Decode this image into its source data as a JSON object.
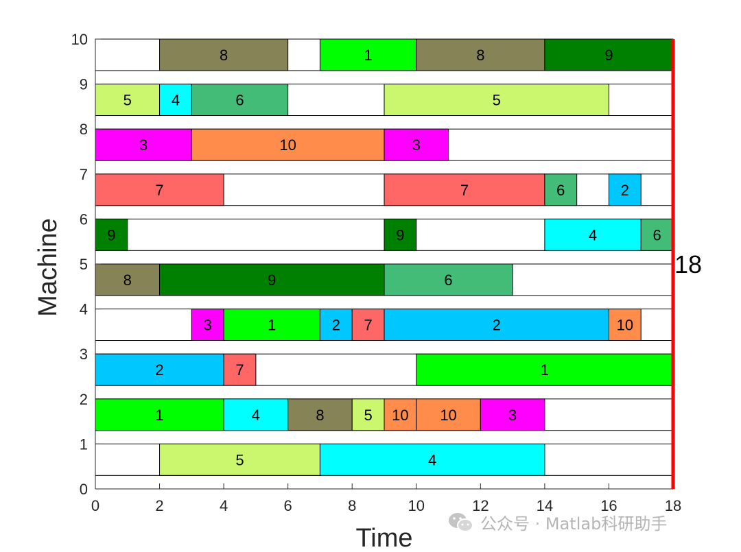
{
  "chart_data": {
    "type": "gantt",
    "xlabel": "Time",
    "ylabel": "Machine",
    "xlim": [
      0,
      18
    ],
    "ylim": [
      0,
      10
    ],
    "x_ticks": [
      "0",
      "2",
      "4",
      "6",
      "8",
      "10",
      "12",
      "14",
      "16",
      "18"
    ],
    "y_ticks": [
      "0",
      "1",
      "2",
      "3",
      "4",
      "5",
      "6",
      "7",
      "8",
      "9",
      "10"
    ],
    "makespan": 18,
    "makespan_label": "18",
    "makespan_color": "#ff0000",
    "job_colors": {
      "1": "#00ff00",
      "2": "#00c8ff",
      "3": "#ff00ff",
      "4": "#00ffff",
      "5": "#cbf76f",
      "6": "#43bc78",
      "7": "#ff6666",
      "8": "#868456",
      "9": "#008000",
      "10": "#ff8c4a"
    },
    "machines": [
      {
        "machine": 1,
        "ops": [
          {
            "job": "5",
            "start": 2,
            "end": 7
          },
          {
            "job": "4",
            "start": 7,
            "end": 14
          }
        ]
      },
      {
        "machine": 2,
        "ops": [
          {
            "job": "1",
            "start": 0,
            "end": 4
          },
          {
            "job": "4",
            "start": 4,
            "end": 6
          },
          {
            "job": "8",
            "start": 6,
            "end": 8
          },
          {
            "job": "5",
            "start": 8,
            "end": 9
          },
          {
            "job": "10",
            "start": 9,
            "end": 10
          },
          {
            "job": "10",
            "start": 10,
            "end": 12
          },
          {
            "job": "3",
            "start": 12,
            "end": 14
          }
        ]
      },
      {
        "machine": 3,
        "ops": [
          {
            "job": "2",
            "start": 0,
            "end": 4
          },
          {
            "job": "7",
            "start": 4,
            "end": 5
          },
          {
            "job": "1",
            "start": 10,
            "end": 18
          }
        ]
      },
      {
        "machine": 4,
        "ops": [
          {
            "job": "3",
            "start": 3,
            "end": 4
          },
          {
            "job": "1",
            "start": 4,
            "end": 7
          },
          {
            "job": "2",
            "start": 7,
            "end": 8
          },
          {
            "job": "7",
            "start": 8,
            "end": 9
          },
          {
            "job": "2",
            "start": 9,
            "end": 16
          },
          {
            "job": "10",
            "start": 16,
            "end": 17
          }
        ]
      },
      {
        "machine": 5,
        "ops": [
          {
            "job": "8",
            "start": 0,
            "end": 2
          },
          {
            "job": "9",
            "start": 2,
            "end": 9
          },
          {
            "job": "6",
            "start": 9,
            "end": 13
          }
        ]
      },
      {
        "machine": 6,
        "ops": [
          {
            "job": "9",
            "start": 0,
            "end": 1
          },
          {
            "job": "9",
            "start": 9,
            "end": 10
          },
          {
            "job": "4",
            "start": 14,
            "end": 17
          },
          {
            "job": "6",
            "start": 17,
            "end": 18
          }
        ]
      },
      {
        "machine": 7,
        "ops": [
          {
            "job": "7",
            "start": 0,
            "end": 4
          },
          {
            "job": "7",
            "start": 9,
            "end": 14
          },
          {
            "job": "6",
            "start": 14,
            "end": 15
          },
          {
            "job": "2",
            "start": 16,
            "end": 17
          }
        ]
      },
      {
        "machine": 8,
        "ops": [
          {
            "job": "3",
            "start": 0,
            "end": 3
          },
          {
            "job": "10",
            "start": 3,
            "end": 9
          },
          {
            "job": "3",
            "start": 9,
            "end": 11
          }
        ]
      },
      {
        "machine": 9,
        "ops": [
          {
            "job": "5",
            "start": 0,
            "end": 2
          },
          {
            "job": "4",
            "start": 2,
            "end": 3
          },
          {
            "job": "6",
            "start": 3,
            "end": 6
          },
          {
            "job": "5",
            "start": 9,
            "end": 16
          }
        ]
      },
      {
        "machine": 10,
        "ops": [
          {
            "job": "8",
            "start": 2,
            "end": 6
          },
          {
            "job": "1",
            "start": 7,
            "end": 10
          },
          {
            "job": "8",
            "start": 10,
            "end": 14
          },
          {
            "job": "9",
            "start": 14,
            "end": 18
          }
        ]
      }
    ]
  },
  "watermark": {
    "text": "公众号 · Matlab科研助手",
    "icon": "wechat-icon"
  }
}
